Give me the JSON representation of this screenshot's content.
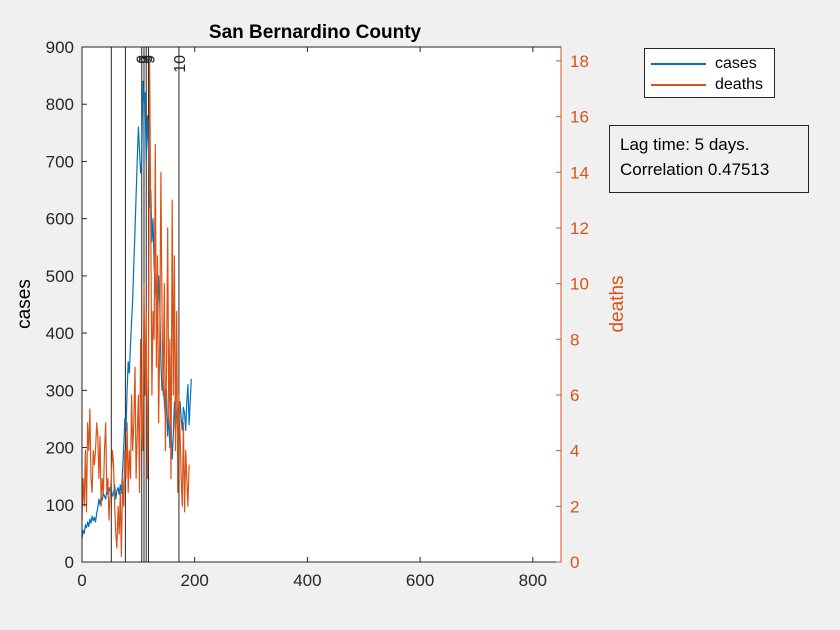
{
  "chart_data": {
    "type": "line",
    "title": "San Bernardino County",
    "xlabel": "",
    "ylabel_left": "cases",
    "ylabel_right": "deaths",
    "xlim": [
      0,
      850
    ],
    "ylim_left": [
      0,
      900
    ],
    "ylim_right": [
      0,
      18.5
    ],
    "xticks": [
      0,
      200,
      400,
      600,
      800
    ],
    "yticks_left": [
      0,
      100,
      200,
      300,
      400,
      500,
      600,
      700,
      800,
      900
    ],
    "yticks_right": [
      0,
      2,
      4,
      6,
      8,
      10,
      12,
      14,
      16,
      18
    ],
    "grid": false,
    "legend": {
      "placement": "top-right",
      "entries": [
        "cases",
        "deaths"
      ]
    },
    "colors": {
      "cases": "#0072bd",
      "deaths": "#d95319",
      "right_axis": "#d95319"
    },
    "vlines": [
      {
        "x": 52,
        "label": ""
      },
      {
        "x": 77,
        "label": ""
      },
      {
        "x": 106,
        "label": "6"
      },
      {
        "x": 110,
        "label": "7"
      },
      {
        "x": 114,
        "label": "8"
      },
      {
        "x": 118,
        "label": "9"
      },
      {
        "x": 172,
        "label": "10"
      }
    ],
    "series": [
      {
        "name": "cases",
        "axis": "left",
        "x": [
          0,
          2,
          4,
          6,
          8,
          10,
          12,
          14,
          16,
          18,
          20,
          22,
          24,
          26,
          28,
          30,
          32,
          34,
          36,
          38,
          40,
          42,
          44,
          46,
          48,
          50,
          52,
          54,
          56,
          58,
          60,
          62,
          64,
          66,
          68,
          70,
          72,
          74,
          76,
          78,
          80,
          82,
          84,
          86,
          88,
          90,
          92,
          94,
          96,
          98,
          100,
          102,
          104,
          106,
          108,
          110,
          112,
          114,
          116,
          118,
          120,
          122,
          124,
          126,
          128,
          130,
          132,
          134,
          136,
          138,
          140,
          142,
          144,
          146,
          148,
          150,
          152,
          154,
          156,
          158,
          160,
          162,
          164,
          166,
          168,
          170,
          172,
          174,
          176,
          178,
          180,
          182,
          184,
          186,
          188,
          190,
          192,
          194
        ],
        "values": [
          40,
          55,
          50,
          65,
          60,
          70,
          62,
          75,
          68,
          80,
          72,
          78,
          70,
          85,
          95,
          110,
          100,
          115,
          108,
          120,
          115,
          110,
          125,
          118,
          130,
          122,
          128,
          115,
          120,
          135,
          110,
          125,
          130,
          118,
          135,
          120,
          160,
          200,
          250,
          230,
          300,
          350,
          330,
          380,
          420,
          460,
          520,
          580,
          640,
          700,
          760,
          720,
          680,
          700,
          840,
          800,
          820,
          700,
          780,
          720,
          620,
          650,
          560,
          600,
          520,
          480,
          450,
          400,
          500,
          450,
          350,
          300,
          320,
          280,
          250,
          300,
          220,
          260,
          200,
          240,
          180,
          220,
          280,
          230,
          260,
          270,
          240,
          280,
          250,
          230,
          270,
          260,
          230,
          280,
          310,
          240,
          280,
          320
        ]
      },
      {
        "name": "deaths",
        "axis": "right",
        "x": [
          0,
          2,
          4,
          6,
          8,
          10,
          12,
          14,
          16,
          18,
          20,
          22,
          24,
          26,
          28,
          30,
          32,
          34,
          36,
          38,
          40,
          42,
          44,
          46,
          48,
          50,
          52,
          54,
          56,
          58,
          60,
          62,
          64,
          66,
          68,
          70,
          72,
          74,
          76,
          78,
          80,
          82,
          84,
          86,
          88,
          90,
          92,
          94,
          96,
          98,
          100,
          102,
          104,
          106,
          108,
          110,
          112,
          114,
          116,
          118,
          120,
          122,
          124,
          126,
          128,
          130,
          132,
          134,
          136,
          138,
          140,
          142,
          144,
          146,
          148,
          150,
          152,
          154,
          156,
          158,
          160,
          162,
          164,
          166,
          168,
          170,
          172,
          174,
          176,
          178,
          180,
          182,
          184,
          186,
          188,
          190
        ],
        "values": [
          1.5,
          3,
          2,
          4,
          1.8,
          5,
          4,
          5.5,
          3,
          2.5,
          4,
          3.5,
          4,
          5,
          4.5,
          3,
          4.5,
          2,
          3,
          2.5,
          4,
          5,
          2.5,
          3,
          1.5,
          2.5,
          3,
          4,
          3.5,
          2,
          1,
          0.5,
          2,
          1,
          2.5,
          0.2,
          3,
          2,
          4,
          3,
          5,
          2.5,
          4,
          3,
          6,
          4,
          5,
          7,
          3,
          4.5,
          6,
          2.5,
          8,
          5,
          4,
          10,
          6,
          9,
          3,
          7,
          18,
          12,
          6,
          9,
          8,
          15,
          7,
          11,
          5,
          8,
          14,
          9,
          6,
          10,
          4,
          7,
          12,
          5,
          8,
          3,
          13,
          6,
          11,
          4,
          9,
          2.5,
          6,
          4.5,
          3,
          2,
          5,
          1.8,
          4,
          3,
          2,
          3.5
        ]
      }
    ]
  },
  "legend": {
    "cases_label": "cases",
    "deaths_label": "deaths"
  },
  "annotation": {
    "line1": "Lag time: 5 days.",
    "line2": "Correlation 0.47513"
  }
}
